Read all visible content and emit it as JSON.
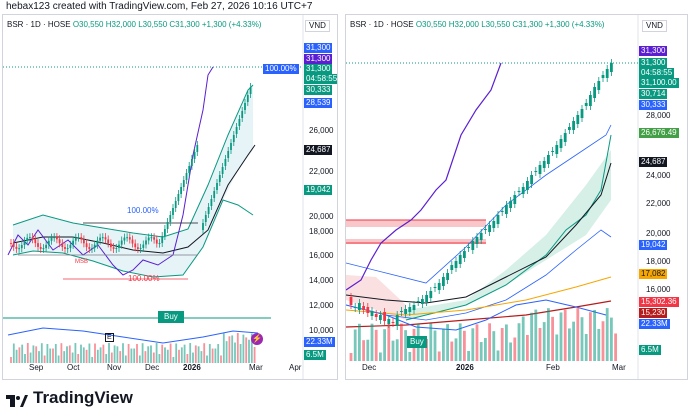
{
  "header": {
    "text": "hebax123 created with TradingView.com, Feb 27, 2026 10:16 UTC+7"
  },
  "left": {
    "symbol": "BSR · 1D · HOSE",
    "ohlc": {
      "o": "O30,550",
      "h": "H32,000",
      "l": "L30,550",
      "c": "C31,300",
      "chg": "+1,300 (+4.33%)"
    },
    "currency": "VND",
    "yticks": [
      "28,000",
      "26,000",
      "22,000",
      "20,000",
      "18,000",
      "16,000",
      "14,000",
      "12,000",
      "10,000"
    ],
    "tags": {
      "t1": "31,300",
      "t2": "31,300",
      "t3": "04:58:55",
      "t4": "30,333",
      "t5": "28,539",
      "t6": "24,687",
      "t7": "19,042",
      "t8": "22.33M",
      "t9": "6.5M"
    },
    "pct": "100.00%",
    "fib_a": "100.00%",
    "fib_b": "100.00%",
    "small_label": "MSB",
    "buy": "Buy",
    "e_marker": "E",
    "xticks": [
      "Sep",
      "Oct",
      "Nov",
      "Dec",
      "2026",
      "Mar",
      "Apr"
    ]
  },
  "right": {
    "symbol": "BSR · 1D · HOSE",
    "ohlc": {
      "o": "O30,550",
      "h": "H32,000",
      "l": "L30,550",
      "c": "C31,300",
      "chg": "+1,300 (+4.33%)"
    },
    "currency": "VND",
    "yticks": [
      "28,000",
      "26,000",
      "24,000",
      "22,000",
      "20,000",
      "18,000",
      "16,000",
      "14,000",
      "12,000",
      "10,000"
    ],
    "tags": {
      "t1": "31,300",
      "t2": "31,300",
      "t3": "04:58:55",
      "t4": "31,100.00",
      "t5": "30,714",
      "t6": "30,333",
      "t7": "26,676.49",
      "t8": "24,687",
      "t9": "19,042",
      "t10": "17,082",
      "t11": "15,302.36",
      "t12": "15,230",
      "t13": "22.33M",
      "t14": "6.5M"
    },
    "buy": "Buy",
    "xticks": [
      "Dec",
      "2026",
      "Feb",
      "Mar"
    ]
  },
  "footer": {
    "brand": "TradingView"
  },
  "colors": {
    "up": "#089981",
    "down": "#f23645",
    "blue": "#2962ff",
    "purple": "#5b1fd1"
  }
}
